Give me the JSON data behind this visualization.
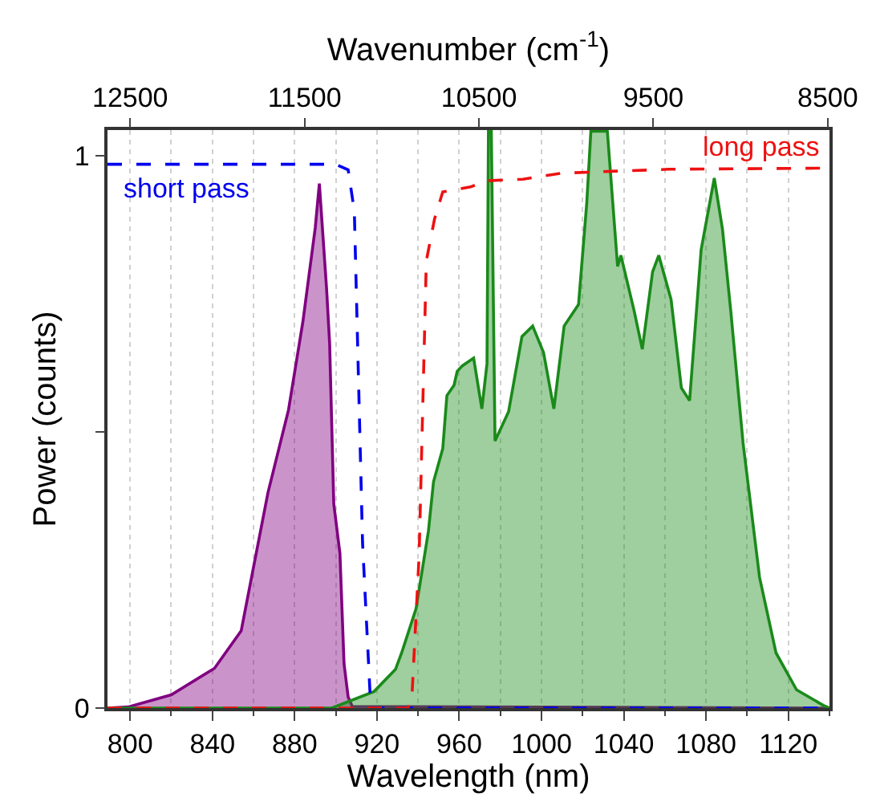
{
  "chart_data": {
    "type": "area",
    "xlabel": "Wavelength (nm)",
    "ylabel": "Power (counts)",
    "x2label": "Wavenumber (cm$^{-1}$)",
    "xlim": [
      789,
      1140
    ],
    "xticks": [
      800,
      840,
      880,
      920,
      960,
      1000,
      1040,
      1080,
      1120
    ],
    "x2lim": [
      12630,
      8490
    ],
    "x2ticks": [
      12500,
      11500,
      10500,
      9500,
      8500
    ],
    "ylim": [
      0,
      1.047
    ],
    "yticks": [
      0,
      {
        "value": 0.5,
        "label": null
      },
      1
    ],
    "grid": "x",
    "legend": false,
    "series": [
      {
        "color": "#800080",
        "x": [
          789,
          799,
          820,
          841,
          854,
          867,
          877,
          884,
          890,
          892,
          895.5,
          897,
          899,
          902,
          904,
          906,
          908,
          1140
        ],
        "values": [
          0,
          0.002,
          0.024,
          0.072,
          0.14,
          0.39,
          0.54,
          0.7,
          0.87,
          0.95,
          0.76,
          0.66,
          0.37,
          0.28,
          0.08,
          0.02,
          0.003,
          0
        ]
      },
      {
        "color": "#1a8a1a",
        "x": [
          789,
          898,
          918.6,
          929,
          932,
          939,
          945,
          947.5,
          952,
          954,
          957.5,
          959,
          961.5,
          967,
          971,
          973.5,
          974.2,
          975.6,
          977.4,
          984,
          990.5,
          995.7,
          1001,
          1006,
          1011,
          1018,
          1022,
          1024,
          1032,
          1037,
          1038.6,
          1045,
          1049,
          1054,
          1057,
          1063,
          1068,
          1072,
          1077.6,
          1084,
          1088,
          1092,
          1098,
          1106,
          1114,
          1124,
          1137,
          1140
        ],
        "values": [
          0,
          0,
          0.03,
          0.07,
          0.1,
          0.18,
          0.32,
          0.41,
          0.47,
          0.566,
          0.585,
          0.61,
          0.62,
          0.634,
          0.542,
          0.624,
          1.045,
          1.045,
          0.484,
          0.537,
          0.673,
          0.692,
          0.644,
          0.542,
          0.692,
          0.731,
          0.915,
          1.045,
          1.045,
          0.8,
          0.82,
          0.72,
          0.65,
          0.79,
          0.82,
          0.74,
          0.58,
          0.557,
          0.83,
          0.96,
          0.867,
          0.72,
          0.48,
          0.237,
          0.1,
          0.033,
          0.005,
          0
        ]
      },
      {
        "type": "line",
        "name": "short pass",
        "color": "#0000ee",
        "line_style": "dashed",
        "x": [
          789,
          800,
          850,
          900,
          906,
          909,
          913,
          917,
          1140
        ],
        "values": [
          0.985,
          0.985,
          0.985,
          0.985,
          0.975,
          0.9,
          0.3,
          0,
          0
        ]
      },
      {
        "type": "line",
        "name": "long pass",
        "color": "#ee1111",
        "line_style": "dashed",
        "x": [
          789,
          935,
          937,
          940.5,
          944,
          948,
          952,
          965.5,
          973,
          991,
          1010,
          1062,
          1140
        ],
        "values": [
          0,
          0,
          0.02,
          0.276,
          0.81,
          0.886,
          0.935,
          0.944,
          0.955,
          0.958,
          0.969,
          0.976,
          0.978
        ]
      }
    ]
  }
}
